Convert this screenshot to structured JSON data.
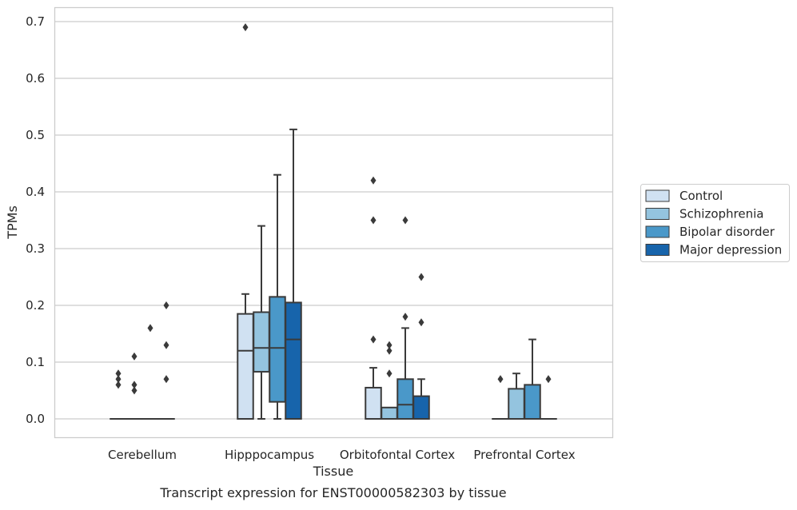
{
  "caption": "Transcript expression for ENST00000582303 by tissue",
  "chart_data": {
    "type": "boxplot",
    "title": "",
    "xlabel": "Tissue",
    "ylabel": "TPMs",
    "ylim": [
      -0.034,
      0.725
    ],
    "yticks": [
      0.0,
      0.1,
      0.2,
      0.3,
      0.4,
      0.5,
      0.6,
      0.7
    ],
    "ytick_labels": [
      "0.0",
      "0.1",
      "0.2",
      "0.3",
      "0.4",
      "0.5",
      "0.6",
      "0.7"
    ],
    "grid": "horizontal",
    "legend_position": "right",
    "categories": [
      "Cerebellum",
      "Hipppocampus",
      "Orbitofontal Cortex",
      "Prefrontal Cortex"
    ],
    "series": [
      {
        "name": "Control",
        "color": "#d0e1f2",
        "boxes": [
          {
            "q1": 0.0,
            "median": 0.0,
            "q3": 0.0,
            "whislo": 0.0,
            "whishi": 0.0,
            "fliers": [
              0.08,
              0.07,
              0.06
            ]
          },
          {
            "q1": 0.0,
            "median": 0.12,
            "q3": 0.185,
            "whislo": 0.0,
            "whishi": 0.22,
            "fliers": [
              0.69
            ]
          },
          {
            "q1": 0.0,
            "median": 0.0,
            "q3": 0.055,
            "whislo": 0.0,
            "whishi": 0.09,
            "fliers": [
              0.42,
              0.35,
              0.14
            ]
          },
          {
            "q1": 0.0,
            "median": 0.0,
            "q3": 0.0,
            "whislo": 0.0,
            "whishi": 0.0,
            "fliers": [
              0.07
            ]
          }
        ]
      },
      {
        "name": "Schizophrenia",
        "color": "#94c4df",
        "boxes": [
          {
            "q1": 0.0,
            "median": 0.0,
            "q3": 0.0,
            "whislo": 0.0,
            "whishi": 0.0,
            "fliers": [
              0.11,
              0.06,
              0.05
            ]
          },
          {
            "q1": 0.083,
            "median": 0.125,
            "q3": 0.188,
            "whislo": 0.0,
            "whishi": 0.34,
            "fliers": []
          },
          {
            "q1": 0.0,
            "median": 0.0,
            "q3": 0.02,
            "whislo": 0.0,
            "whishi": 0.02,
            "fliers": [
              0.13,
              0.12,
              0.08
            ]
          },
          {
            "q1": 0.0,
            "median": 0.0,
            "q3": 0.053,
            "whislo": 0.0,
            "whishi": 0.08,
            "fliers": []
          }
        ]
      },
      {
        "name": "Bipolar disorder",
        "color": "#4a98c9",
        "boxes": [
          {
            "q1": 0.0,
            "median": 0.0,
            "q3": 0.0,
            "whislo": 0.0,
            "whishi": 0.0,
            "fliers": [
              0.16
            ]
          },
          {
            "q1": 0.03,
            "median": 0.125,
            "q3": 0.215,
            "whislo": 0.0,
            "whishi": 0.43,
            "fliers": []
          },
          {
            "q1": 0.0,
            "median": 0.025,
            "q3": 0.07,
            "whislo": 0.0,
            "whishi": 0.16,
            "fliers": [
              0.35,
              0.18
            ]
          },
          {
            "q1": 0.0,
            "median": 0.0,
            "q3": 0.06,
            "whislo": 0.0,
            "whishi": 0.14,
            "fliers": []
          }
        ]
      },
      {
        "name": "Major depression",
        "color": "#1764ab",
        "boxes": [
          {
            "q1": 0.0,
            "median": 0.0,
            "q3": 0.0,
            "whislo": 0.0,
            "whishi": 0.0,
            "fliers": [
              0.2,
              0.13,
              0.07
            ]
          },
          {
            "q1": 0.0,
            "median": 0.14,
            "q3": 0.205,
            "whislo": 0.0,
            "whishi": 0.51,
            "fliers": []
          },
          {
            "q1": 0.0,
            "median": 0.0,
            "q3": 0.04,
            "whislo": 0.0,
            "whishi": 0.07,
            "fliers": [
              0.25,
              0.17
            ]
          },
          {
            "q1": 0.0,
            "median": 0.0,
            "q3": 0.0,
            "whislo": 0.0,
            "whishi": 0.0,
            "fliers": [
              0.07
            ]
          }
        ]
      }
    ]
  }
}
